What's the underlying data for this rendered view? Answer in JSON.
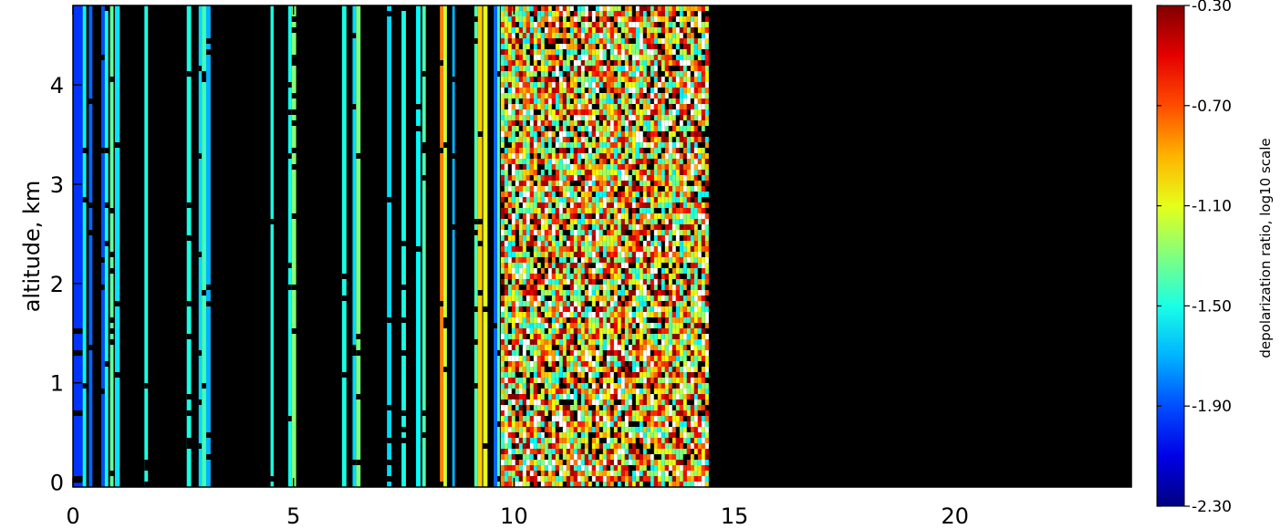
{
  "chart_data": {
    "type": "heatmap",
    "title": "",
    "xlabel": "",
    "ylabel": "altitude,  km",
    "xlim": [
      0,
      24
    ],
    "ylim": [
      -0.05,
      4.8
    ],
    "x_ticks": [
      "0",
      "5",
      "10",
      "15",
      "20"
    ],
    "x_tick_values": [
      0,
      5,
      10,
      15,
      20
    ],
    "y_ticks": [
      "0",
      "1",
      "2",
      "3",
      "4"
    ],
    "y_tick_values": [
      0,
      1,
      2,
      3,
      4
    ],
    "background_color": "#000000",
    "colorbar": {
      "label": "depolarization ratio, log10 scale",
      "min": -2.3,
      "max": -0.3,
      "ticks": [
        "-0.30",
        "-0.70",
        "-1.10",
        "-1.50",
        "-1.90",
        "-2.30"
      ],
      "tick_values": [
        -0.3,
        -0.7,
        -1.1,
        -1.5,
        -1.9,
        -2.3
      ],
      "colormap": "jet"
    },
    "data_extent_x": [
      0,
      14.4
    ],
    "stripes": [
      {
        "x0": 0.0,
        "x1": 0.22,
        "value": -1.95
      },
      {
        "x0": 0.22,
        "x1": 0.3,
        "value": -1.55
      },
      {
        "x0": 0.36,
        "x1": 0.44,
        "value": -1.85
      },
      {
        "x0": 0.64,
        "x1": 0.72,
        "value": -1.9
      },
      {
        "x0": 0.72,
        "x1": 0.8,
        "value": -1.52
      },
      {
        "x0": 0.84,
        "x1": 0.92,
        "value": -1.35
      },
      {
        "x0": 0.95,
        "x1": 1.06,
        "value": -1.6
      },
      {
        "x0": 1.62,
        "x1": 1.7,
        "value": -1.5
      },
      {
        "x0": 2.58,
        "x1": 2.68,
        "value": -1.5
      },
      {
        "x0": 2.85,
        "x1": 2.92,
        "value": -1.62
      },
      {
        "x0": 2.92,
        "x1": 3.02,
        "value": -1.42
      },
      {
        "x0": 3.02,
        "x1": 3.12,
        "value": -1.7
      },
      {
        "x0": 4.48,
        "x1": 4.55,
        "value": -1.5
      },
      {
        "x0": 4.88,
        "x1": 4.96,
        "value": -1.52
      },
      {
        "x0": 4.96,
        "x1": 5.06,
        "value": -1.28
      },
      {
        "x0": 6.1,
        "x1": 6.2,
        "value": -1.5
      },
      {
        "x0": 6.34,
        "x1": 6.42,
        "value": -1.62
      },
      {
        "x0": 6.42,
        "x1": 6.52,
        "value": -1.3
      },
      {
        "x0": 7.12,
        "x1": 7.22,
        "value": -1.62
      },
      {
        "x0": 7.45,
        "x1": 7.55,
        "value": -1.5
      },
      {
        "x0": 7.78,
        "x1": 7.88,
        "value": -1.55
      },
      {
        "x0": 7.92,
        "x1": 8.0,
        "value": -1.4
      },
      {
        "x0": 8.32,
        "x1": 8.4,
        "value": -0.8
      },
      {
        "x0": 8.4,
        "x1": 8.48,
        "value": -1.15
      },
      {
        "x0": 8.6,
        "x1": 8.66,
        "value": -1.7
      },
      {
        "x0": 9.1,
        "x1": 9.18,
        "value": -1.4
      },
      {
        "x0": 9.18,
        "x1": 9.28,
        "value": -0.95
      },
      {
        "x0": 9.3,
        "x1": 9.4,
        "value": -1.1
      },
      {
        "x0": 9.54,
        "x1": 9.62,
        "value": -1.85
      },
      {
        "x0": 9.62,
        "x1": 9.68,
        "value": -1.4
      }
    ],
    "noise_region": {
      "x0": 9.7,
      "x1": 14.4,
      "value_range": [
        -1.6,
        -0.3
      ],
      "white_fraction": 0.1,
      "black_fraction": 0.12
    },
    "left_edge_column": {
      "x0": 0.0,
      "x1": 0.07,
      "value": -1.5
    }
  }
}
